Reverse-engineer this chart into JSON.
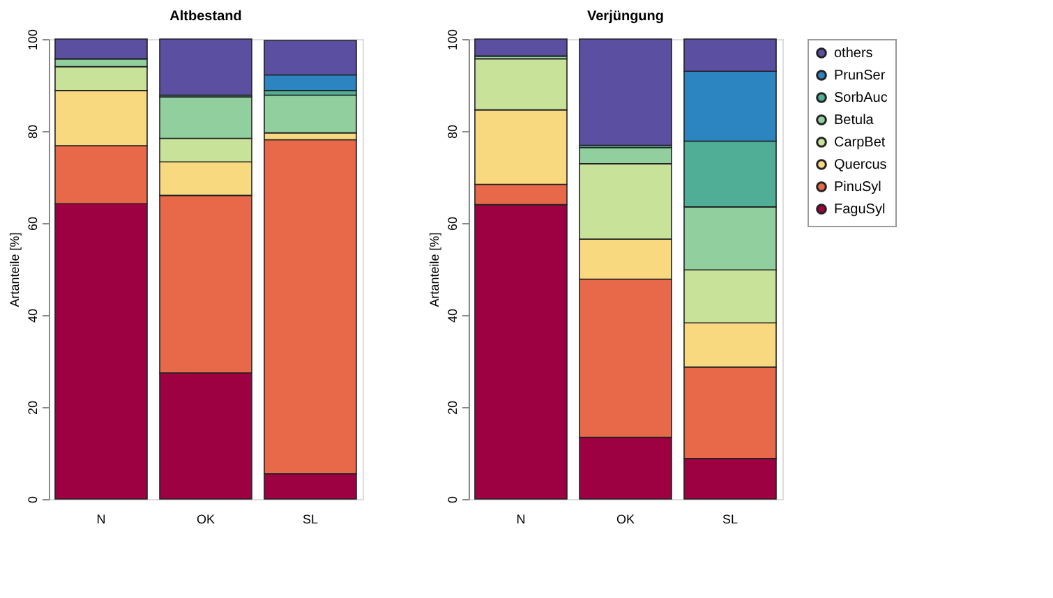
{
  "chart_data": [
    {
      "type": "bar",
      "stacked": true,
      "title": "Altbestand",
      "ylabel": "Artanteile [%]",
      "categories": [
        "N",
        "OK",
        "SL"
      ],
      "ylim": [
        0,
        100
      ],
      "yticks": [
        0,
        20,
        40,
        60,
        80,
        100
      ],
      "grid": false,
      "series": [
        {
          "color": "#9e0142",
          "values": [
            64.2,
            27.4,
            5.5
          ]
        },
        {
          "color": "#e8694a",
          "values": [
            12.6,
            38.6,
            72.6
          ]
        },
        {
          "color": "#f8d97f",
          "values": [
            12.0,
            7.3,
            1.5
          ]
        },
        {
          "color": "#c9e29a",
          "values": [
            5.2,
            5.1,
            null
          ]
        },
        {
          "color": "#91cf9f",
          "values": [
            1.7,
            9.0,
            8.2
          ]
        },
        {
          "color": "#4fae95",
          "values": [
            0,
            0.4,
            1.0
          ]
        },
        {
          "color": "#2c85c0",
          "values": [
            0,
            0,
            3.4
          ]
        },
        {
          "color": "#5a4fa0",
          "values": [
            4.3,
            12.2,
            7.5
          ]
        }
      ]
    },
    {
      "type": "bar",
      "stacked": true,
      "title": "Verjüngung",
      "ylabel": "Artanteile [%]",
      "categories": [
        "N",
        "OK",
        "SL"
      ],
      "ylim": [
        0,
        100
      ],
      "yticks": [
        0,
        20,
        40,
        60,
        80,
        100
      ],
      "grid": false,
      "legend": "right",
      "series": [
        {
          "name": "FaguSyl",
          "color": "#9e0142",
          "values": [
            64.0,
            13.4,
            8.8
          ]
        },
        {
          "name": "PinuSyl",
          "color": "#e8694a",
          "values": [
            4.4,
            34.4,
            19.9
          ]
        },
        {
          "name": "Quercus",
          "color": "#f8d97f",
          "values": [
            16.2,
            8.7,
            9.6
          ]
        },
        {
          "name": "CarpBet",
          "color": "#c9e29a",
          "values": [
            11.1,
            16.4,
            11.5
          ]
        },
        {
          "name": "Betula",
          "color": "#91cf9f",
          "values": [
            0.6,
            3.5,
            13.7
          ]
        },
        {
          "name": "SorbAuc",
          "color": "#4fae95",
          "values": [
            0,
            0.5,
            14.3
          ]
        },
        {
          "name": "PrunSer",
          "color": "#2c85c0",
          "values": [
            0,
            0,
            15.2
          ]
        },
        {
          "name": "others",
          "color": "#5a4fa0",
          "values": [
            3.7,
            23.1,
            7.0
          ]
        }
      ]
    }
  ]
}
